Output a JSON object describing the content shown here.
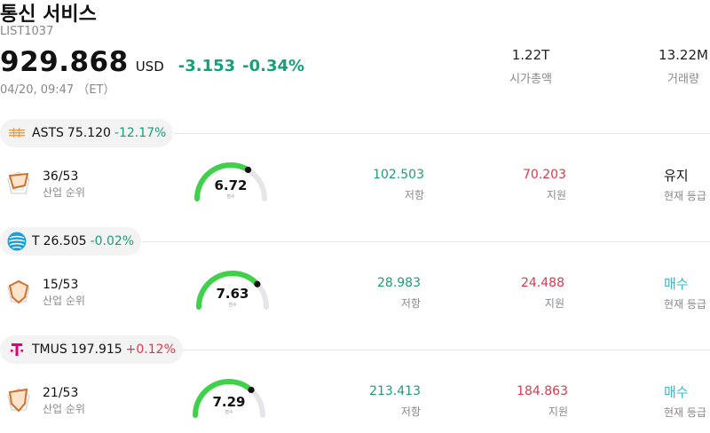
{
  "header": {
    "title": "통신 서비스",
    "code": "LIST1037",
    "price": "929.868",
    "currency": "USD",
    "change": "-3.153",
    "change_pct": "-0.34%",
    "time": "04/20, 09:47 （ET）",
    "market_cap": {
      "value": "1.22T",
      "label": "시가총액"
    },
    "volume": {
      "value": "13.22M",
      "label": "거래량"
    }
  },
  "colors": {
    "up": "#e0364b",
    "down": "#1a9e78",
    "buy": "#35b8c9",
    "gauge": "#3fd14a"
  },
  "stocks": [
    {
      "ticker": "ASTS",
      "price": "75.120",
      "pct": "-12.17%",
      "pct_color": "#1a9e78",
      "logo": "asts-logo",
      "rank": "36/53",
      "rank_label": "산업 순위",
      "score": "6.72",
      "score_label": "점수",
      "score_fraction": 0.672,
      "resistance": "102.503",
      "resistance_label": "저항",
      "support": "70.203",
      "support_label": "지원",
      "rating": "유지",
      "rating_label": "현재 등급",
      "rating_buy": false
    },
    {
      "ticker": "T",
      "price": "26.505",
      "pct": "-0.02%",
      "pct_color": "#1a9e78",
      "logo": "att-globe-logo",
      "rank": "15/53",
      "rank_label": "산업 순위",
      "score": "7.63",
      "score_label": "점수",
      "score_fraction": 0.763,
      "resistance": "28.983",
      "resistance_label": "저항",
      "support": "24.488",
      "support_label": "지원",
      "rating": "매수",
      "rating_label": "현재 등급",
      "rating_buy": true
    },
    {
      "ticker": "TMUS",
      "price": "197.915",
      "pct": "+0.12%",
      "pct_color": "#e0364b",
      "logo": "tmobile-logo",
      "rank": "21/53",
      "rank_label": "산업 순위",
      "score": "7.29",
      "score_label": "점수",
      "score_fraction": 0.729,
      "resistance": "213.413",
      "resistance_label": "저항",
      "support": "184.863",
      "support_label": "지원",
      "rating": "매수",
      "rating_label": "현재 등급",
      "rating_buy": true
    }
  ]
}
